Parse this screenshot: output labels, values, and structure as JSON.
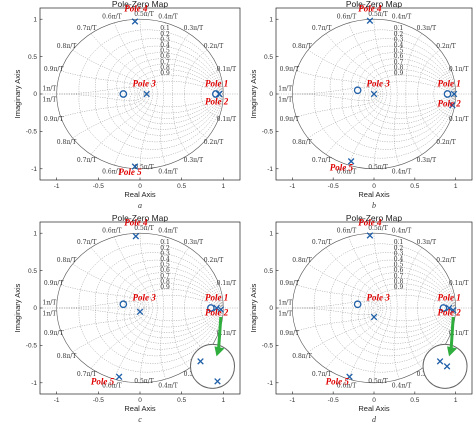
{
  "chart_data": [
    {
      "id": "a",
      "type": "scatter",
      "title": "Pole-Zero Map",
      "xlabel": "Real Axis",
      "ylabel": "Imaginary Axis",
      "xlim": [
        -1.2,
        1.2
      ],
      "ylim": [
        -1.15,
        1.15
      ],
      "xticks": [
        "-1",
        "-0.5",
        "0",
        "0.5",
        "1"
      ],
      "yticks": [
        "1",
        "0.5",
        "0",
        "-0.5",
        "-1"
      ],
      "poles": [
        {
          "x": 0.95,
          "y": 0.0
        },
        {
          "x": 0.08,
          "y": 0.0
        },
        {
          "x": -0.06,
          "y": 0.97
        },
        {
          "x": -0.06,
          "y": -0.97
        },
        {
          "x": 0.95,
          "y": 0.0
        }
      ],
      "zeros": [
        {
          "x": 0.91,
          "y": 0.0
        },
        {
          "x": -0.2,
          "y": 0.0
        }
      ],
      "pole_labels": [
        {
          "text": "Pole 4",
          "x": -0.05,
          "y": 1.1
        },
        {
          "text": "Pole 3",
          "x": 0.05,
          "y": 0.1
        },
        {
          "text": "Pole 1",
          "x": 0.92,
          "y": 0.1
        },
        {
          "text": "Pole 2",
          "x": 0.92,
          "y": -0.14
        },
        {
          "text": "Pole 5",
          "x": -0.12,
          "y": -1.08
        }
      ],
      "grid": true,
      "caption": "a",
      "inset": false
    },
    {
      "id": "b",
      "type": "scatter",
      "title": "Pole-Zero Map",
      "xlabel": "Real Axis",
      "ylabel": "Imaginary Axis",
      "xlim": [
        -1.2,
        1.2
      ],
      "ylim": [
        -1.15,
        1.15
      ],
      "xticks": [
        "-1",
        "-0.5",
        "0",
        "0.5",
        "1"
      ],
      "yticks": [
        "1",
        "0.5",
        "0",
        "-0.5",
        "-1"
      ],
      "poles": [
        {
          "x": 0.0,
          "y": 0.0
        },
        {
          "x": 0.98,
          "y": 0.0
        },
        {
          "x": 0.96,
          "y": -0.15
        },
        {
          "x": -0.05,
          "y": 0.98
        },
        {
          "x": -0.28,
          "y": -0.9
        }
      ],
      "zeros": [
        {
          "x": 0.9,
          "y": 0.0
        },
        {
          "x": -0.2,
          "y": 0.05
        }
      ],
      "pole_labels": [
        {
          "text": "Pole 4",
          "x": -0.05,
          "y": 1.1
        },
        {
          "text": "Pole 3",
          "x": 0.05,
          "y": 0.1
        },
        {
          "text": "Pole 1",
          "x": 0.92,
          "y": 0.1
        },
        {
          "text": "Pole 2",
          "x": 0.92,
          "y": -0.17
        },
        {
          "text": "Pole 5",
          "x": -0.4,
          "y": -1.02
        }
      ],
      "grid": true,
      "caption": "b",
      "inset": false
    },
    {
      "id": "c",
      "type": "scatter",
      "title": "Pole-Zero Map",
      "xlabel": "Real Axis",
      "ylabel": "Imaginary Axis",
      "xlim": [
        -1.2,
        1.2
      ],
      "ylim": [
        -1.15,
        1.15
      ],
      "xticks": [
        "-1",
        "-0.5",
        "0",
        "0.5",
        "1"
      ],
      "yticks": [
        "1",
        "0.5",
        "0",
        "-0.5",
        "-1"
      ],
      "poles": [
        {
          "x": -0.05,
          "y": 0.96
        },
        {
          "x": 0.0,
          "y": -0.05
        },
        {
          "x": 0.92,
          "y": 0.0
        },
        {
          "x": 0.97,
          "y": -0.02
        },
        {
          "x": -0.25,
          "y": -0.92
        }
      ],
      "zeros": [
        {
          "x": 0.85,
          "y": 0.0
        },
        {
          "x": -0.2,
          "y": 0.05
        }
      ],
      "inset_points": {
        "poles": [
          {
            "dx": -0.12,
            "dy": 0.05
          },
          {
            "dx": 0.05,
            "dy": -0.15
          }
        ]
      },
      "pole_labels": [
        {
          "text": "Pole 4",
          "x": -0.05,
          "y": 1.1
        },
        {
          "text": "Pole 3",
          "x": 0.05,
          "y": 0.1
        },
        {
          "text": "Pole 1",
          "x": 0.92,
          "y": 0.1
        },
        {
          "text": "Pole 2",
          "x": 0.92,
          "y": -0.1
        },
        {
          "text": "Pole 5",
          "x": -0.45,
          "y": -1.02
        }
      ],
      "grid": true,
      "caption": "c",
      "inset": true
    },
    {
      "id": "d",
      "type": "scatter",
      "title": "Pole-Zero Map",
      "xlabel": "Real Axis",
      "ylabel": "Imaginary Axis",
      "xlim": [
        -1.2,
        1.2
      ],
      "ylim": [
        -1.15,
        1.15
      ],
      "xticks": [
        "-1",
        "-0.5",
        "0",
        "0.5",
        "1"
      ],
      "yticks": [
        "1",
        "0.5",
        "0",
        "-0.5",
        "-1"
      ],
      "poles": [
        {
          "x": -0.05,
          "y": 0.97
        },
        {
          "x": 0.0,
          "y": -0.12
        },
        {
          "x": 0.92,
          "y": 0.0
        },
        {
          "x": 0.97,
          "y": -0.03
        },
        {
          "x": -0.3,
          "y": -0.92
        }
      ],
      "zeros": [
        {
          "x": 0.85,
          "y": 0.0
        },
        {
          "x": -0.2,
          "y": 0.05
        }
      ],
      "inset_points": {
        "poles": [
          {
            "dx": -0.05,
            "dy": 0.05
          },
          {
            "dx": 0.02,
            "dy": 0.0
          }
        ]
      },
      "pole_labels": [
        {
          "text": "Pole 4",
          "x": -0.05,
          "y": 1.1
        },
        {
          "text": "Pole 3",
          "x": 0.05,
          "y": 0.1
        },
        {
          "text": "Pole 1",
          "x": 0.92,
          "y": 0.1
        },
        {
          "text": "Pole 2",
          "x": 0.92,
          "y": -0.1
        },
        {
          "text": "Pole 5",
          "x": -0.45,
          "y": -1.02
        }
      ],
      "grid": true,
      "caption": "d",
      "inset": true
    }
  ],
  "grid_labels": {
    "damping": [
      "0.1",
      "0.2",
      "0.3",
      "0.4",
      "0.5",
      "0.6",
      "0.7",
      "0.8",
      "0.9"
    ],
    "freq_left": [
      "0.6π/T",
      "0.7π/T",
      "0.8π/T",
      "0.9π/T",
      "1π/T",
      "1π/T",
      "0.9π/T",
      "0.8π/T",
      "0.7π/T",
      "0.6π/T"
    ],
    "freq_right": [
      "0.4π/T",
      "0.3π/T",
      "0.2π/T",
      "0.1π/T",
      "0.1π/T",
      "0.2π/T",
      "0.3π/T",
      "0.4π/T"
    ],
    "freq_top": "0.5π/T",
    "freq_bottom": "0.5π/T"
  },
  "colors": {
    "marker": "#1f5fa8",
    "pole_label": "#e00000",
    "grid": "#9a9a9a",
    "axes": "#222222",
    "arrow": "#2fae3d"
  }
}
